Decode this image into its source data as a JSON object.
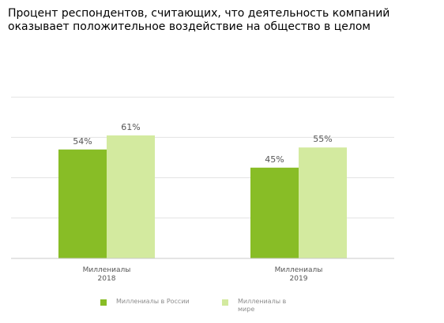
{
  "chart_data": {
    "type": "bar",
    "title": "Процент респондентов, считающих, что деятельность компаний оказывает положительное воздействие на общество в целом",
    "categories": [
      "Миллениалы\n2018",
      "Миллениалы\n2019"
    ],
    "series": [
      {
        "name": "Миллениалы в России",
        "values": [
          54,
          45
        ],
        "labels": [
          "54%",
          "45%"
        ],
        "color": "#88bd26"
      },
      {
        "name": "Миллениалы в мире",
        "values": [
          61,
          55
        ],
        "labels": [
          "61%",
          "55%"
        ],
        "color": "#d3ea9f"
      }
    ],
    "ylim": [
      0,
      100
    ],
    "grid": true,
    "legend_position": "bottom"
  }
}
